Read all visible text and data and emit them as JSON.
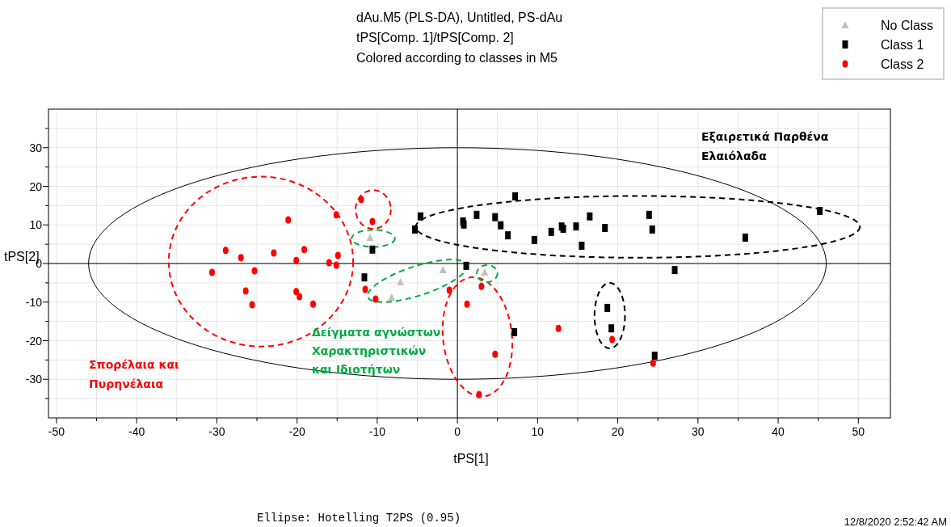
{
  "chart_data": {
    "type": "scatter",
    "title": "dAu.M5 (PLS-DA), Untitled, PS-dAu",
    "subtitle": "tPS[Comp. 1]/tPS[Comp. 2]\nColored according to classes in M5",
    "xlabel": "tPS[1]",
    "ylabel": "tPS[2]",
    "xlim": [
      -51,
      54
    ],
    "ylim": [
      -40,
      40
    ],
    "xticks": [
      -50,
      {
        "value": -45,
        "label": null
      },
      -40,
      {
        "value": -35,
        "label": null
      },
      -30,
      {
        "value": -25,
        "label": null
      },
      -20,
      {
        "value": -15,
        "label": null
      },
      -10,
      {
        "value": -5,
        "label": null
      },
      0,
      {
        "value": 5,
        "label": null
      },
      10,
      {
        "value": 15,
        "label": null
      },
      20,
      {
        "value": 25,
        "label": null
      },
      30,
      {
        "value": 35,
        "label": null
      },
      40,
      {
        "value": 45,
        "label": null
      },
      50
    ],
    "yticks": [
      {
        "value": -35,
        "label": null
      },
      -30,
      {
        "value": -25,
        "label": null
      },
      -20,
      {
        "value": -15,
        "label": null
      },
      -10,
      {
        "value": -5,
        "label": null
      },
      0,
      {
        "value": 5,
        "label": null
      },
      10,
      {
        "value": 15,
        "label": null
      },
      20,
      {
        "value": 25,
        "label": null
      },
      30,
      {
        "value": 35,
        "label": null
      }
    ],
    "grid": true,
    "legend": "top right",
    "series": [
      {
        "name": "No Class",
        "color": "#c0c0c0",
        "marker": "triangle",
        "x": [
          -10.9,
          -8.2,
          -7.1,
          -1.8,
          3.4
        ],
        "values": [
          6.7,
          -8.8,
          -4.8,
          -1.7,
          -2.3
        ]
      },
      {
        "name": "Class 1",
        "color": "#000000",
        "marker": "square",
        "x": [
          -10.6,
          -11.6,
          -5.3,
          -4.6,
          0.7,
          0.8,
          2.4,
          4.7,
          5.4,
          6.3,
          7.2,
          9.6,
          11.7,
          13.0,
          13.2,
          14.8,
          16.5,
          15.5,
          18.4,
          23.9,
          24.3,
          35.9,
          45.2,
          27.1,
          1.1,
          7.1,
          18.7,
          19.2,
          24.6
        ],
        "values": [
          3.6,
          -3.6,
          8.8,
          12.2,
          10.9,
          10.1,
          12.6,
          12.0,
          9.9,
          7.3,
          17.4,
          6.1,
          8.2,
          9.6,
          9.0,
          9.6,
          12.2,
          4.6,
          9.2,
          12.6,
          8.8,
          6.7,
          13.6,
          -1.7,
          -0.6,
          -17.8,
          -11.5,
          -16.8,
          -23.9
        ]
      },
      {
        "name": "Class 2",
        "color": "#ff0000",
        "marker": "circle",
        "x": [
          -30.6,
          -28.9,
          -27.0,
          -26.4,
          -25.6,
          -25.3,
          -22.9,
          -21.1,
          -20.1,
          -20.1,
          -19.7,
          -19.1,
          -18.0,
          -16.0,
          -15.1,
          -15.1,
          -14.9,
          -12.0,
          -11.5,
          -10.6,
          -10.2,
          -1.0,
          1.2,
          3.0,
          4.7,
          2.7,
          12.6,
          19.3,
          24.4
        ],
        "values": [
          -2.3,
          3.4,
          1.5,
          -7.1,
          -10.7,
          -1.9,
          2.7,
          11.3,
          0.8,
          -7.3,
          -8.6,
          3.6,
          -10.5,
          0.2,
          12.6,
          -0.4,
          2.1,
          16.6,
          -6.7,
          10.9,
          -9.2,
          -6.9,
          -10.5,
          -5.9,
          -23.5,
          -34.0,
          -16.8,
          -19.7,
          -25.8
        ]
      }
    ],
    "annotations": [
      "Εξαιρετικά Παρθένα\nΕλαιόλαδα",
      "Σπορέλαια και\nΠυρηνέλαια",
      "Δείγματα αγνώστων\nΧαρακτηριστικών\nκαι Ιδιοτήτων",
      "Ellipse: Hotelling T2PS (0.95)",
      "12/8/2020 2:52:42 AM"
    ]
  }
}
